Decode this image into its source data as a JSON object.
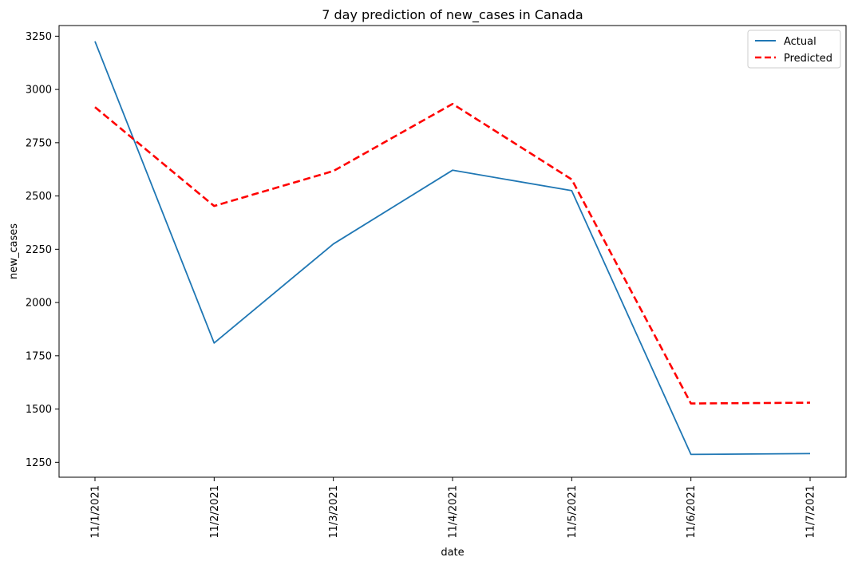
{
  "chart_data": {
    "type": "line",
    "title": "7 day prediction of new_cases in Canada",
    "xlabel": "date",
    "ylabel": "new_cases",
    "x": [
      "11/1/2021",
      "11/2/2021",
      "11/3/2021",
      "11/4/2021",
      "11/5/2021",
      "11/6/2021",
      "11/7/2021"
    ],
    "ylim": [
      1180,
      3300
    ],
    "yticks": [
      1250,
      1500,
      1750,
      2000,
      2250,
      2500,
      2750,
      3000,
      3250
    ],
    "grid": false,
    "legend_position": "top-right",
    "series": [
      {
        "name": "Actual",
        "color": "#1f77b4",
        "style": "solid",
        "values": [
          3226,
          1810,
          2275,
          2621,
          2525,
          1287,
          1291
        ]
      },
      {
        "name": "Predicted",
        "color": "#ff0000",
        "style": "dashed",
        "values": [
          2917,
          2453,
          2617,
          2932,
          2578,
          1526,
          1530
        ]
      }
    ]
  }
}
